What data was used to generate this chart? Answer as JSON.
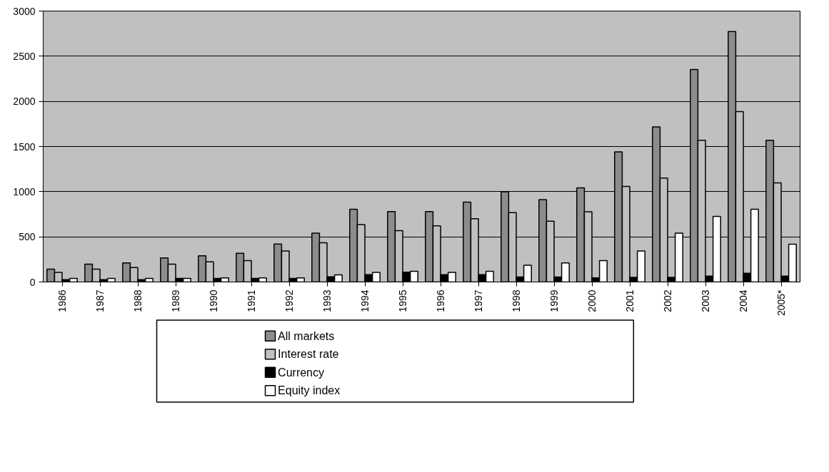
{
  "chart_data": {
    "type": "bar",
    "categories": [
      "1986",
      "1987",
      "1988",
      "1989",
      "1990",
      "1991",
      "1992",
      "1993",
      "1994",
      "1995",
      "1996",
      "1997",
      "1998",
      "1999",
      "2000",
      "2001",
      "2002",
      "2003",
      "2004",
      "2005*"
    ],
    "series": [
      {
        "name": "All markets",
        "color": "#8c8c8c",
        "values": [
          142,
          198,
          211,
          267,
          290,
          318,
          421,
          541,
          805,
          780,
          780,
          884,
          998,
          912,
          1042,
          1440,
          1717,
          2352,
          2774,
          1570
        ]
      },
      {
        "name": "Interest rate",
        "color": "#c0c0c0",
        "values": [
          107,
          142,
          160,
          198,
          223,
          236,
          343,
          434,
          635,
          569,
          622,
          701,
          767,
          673,
          777,
          1057,
          1151,
          1570,
          1887,
          1097
        ]
      },
      {
        "name": "Currency",
        "color": "#000000",
        "values": [
          25,
          25,
          25,
          40,
          40,
          40,
          40,
          58,
          81,
          109,
          81,
          81,
          56,
          56,
          46,
          51,
          51,
          66,
          97,
          66
        ]
      },
      {
        "name": "Equity index",
        "color": "#ffffff",
        "values": [
          40,
          40,
          40,
          40,
          46,
          46,
          46,
          78,
          107,
          119,
          107,
          119,
          185,
          211,
          236,
          343,
          541,
          726,
          805,
          419
        ]
      }
    ],
    "ylim": [
      0,
      3000
    ],
    "yticks": [
      0,
      500,
      1000,
      1500,
      2000,
      2500,
      3000
    ],
    "grid": "y",
    "legend": "bottom"
  }
}
